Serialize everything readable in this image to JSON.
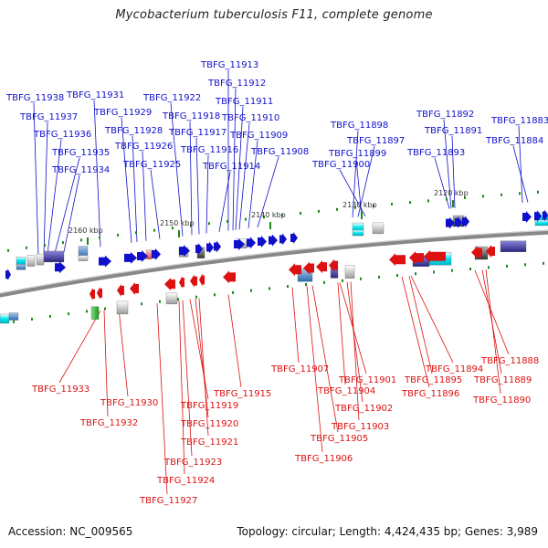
{
  "title": "Mycobacterium tuberculosis F11, complete genome",
  "accession_text": "Accession: NC_009565",
  "summary_text": "Topology: circular; Length: 4,424,435 bp; Genes: 3,989",
  "colors": {
    "forward": "#1010cc",
    "reverse": "#dd1111",
    "backbone": "#777777",
    "tick": "#1a8a1a"
  },
  "scale_labels": [
    "2160 kbp",
    "2150 kbp",
    "2140 kbp",
    "2130 kbp",
    "2120 kbp"
  ],
  "forward_genes": [
    "TBFG_11938",
    "TBFG_11937",
    "TBFG_11936",
    "TBFG_11935",
    "TBFG_11934",
    "TBFG_11931",
    "TBFG_11929",
    "TBFG_11928",
    "TBFG_11926",
    "TBFG_11925",
    "TBFG_11922",
    "TBFG_11918",
    "TBFG_11917",
    "TBFG_11916",
    "TBFG_11914",
    "TBFG_11913",
    "TBFG_11912",
    "TBFG_11911",
    "TBFG_11910",
    "TBFG_11909",
    "TBFG_11908",
    "TBFG_11898",
    "TBFG_11897",
    "TBFG_11899",
    "TBFG_11900",
    "TBFG_11892",
    "TBFG_11891",
    "TBFG_11893",
    "TBFG_11883",
    "TBFG_11884"
  ],
  "reverse_genes": [
    "TBFG_11933",
    "TBFG_11930",
    "TBFG_11932",
    "TBFG_11919",
    "TBFG_11920",
    "TBFG_11921",
    "TBFG_11923",
    "TBFG_11924",
    "TBFG_11927",
    "TBFG_11915",
    "TBFG_11907",
    "TBFG_11901",
    "TBFG_11904",
    "TBFG_11902",
    "TBFG_11903",
    "TBFG_11905",
    "TBFG_11906",
    "TBFG_11895",
    "TBFG_11894",
    "TBFG_11896",
    "TBFG_11888",
    "TBFG_11889",
    "TBFG_11890"
  ]
}
